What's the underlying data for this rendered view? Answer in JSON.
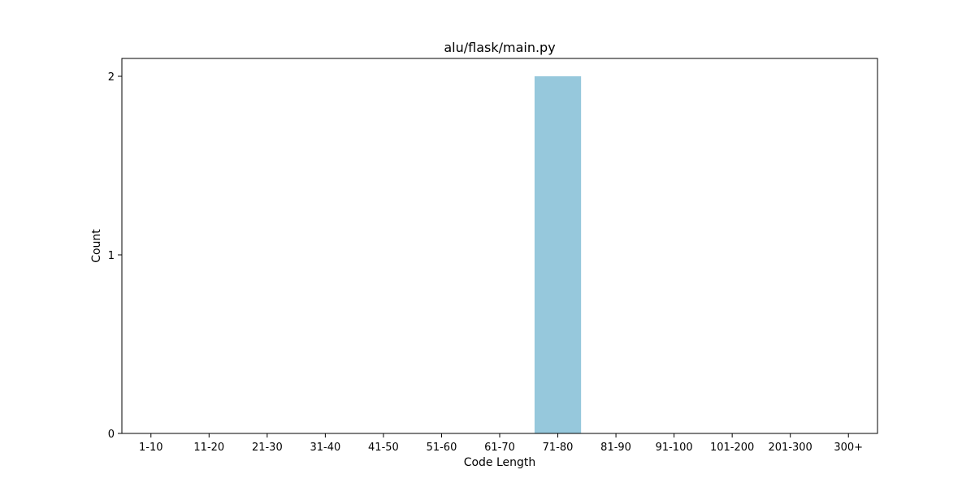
{
  "chart_data": {
    "type": "bar",
    "title": "alu/flask/main.py",
    "xlabel": "Code Length",
    "ylabel": "Count",
    "categories": [
      "1-10",
      "11-20",
      "21-30",
      "31-40",
      "41-50",
      "51-60",
      "61-70",
      "71-80",
      "81-90",
      "91-100",
      "101-200",
      "201-300",
      "300+"
    ],
    "values": [
      0,
      0,
      0,
      0,
      0,
      0,
      0,
      2,
      0,
      0,
      0,
      0,
      0
    ],
    "ylim": [
      0,
      2.1
    ],
    "yticks": [
      0,
      1,
      2
    ],
    "grid": false,
    "legend": "none",
    "bar_color": "#96c8dc"
  }
}
